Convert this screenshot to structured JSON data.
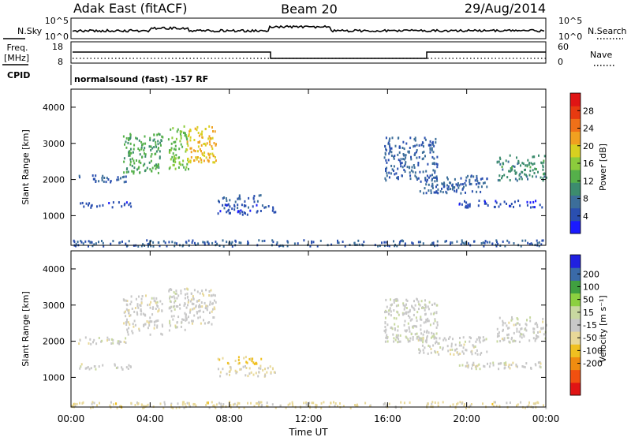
{
  "header": {
    "station": "Adak East (fitACF)",
    "beam": "Beam 20",
    "date": "29/Aug/2014"
  },
  "noise_panel": {
    "left_label": "N.Sky",
    "right_label": "N.Search",
    "ticks": [
      "10^5",
      "10^0"
    ]
  },
  "freq_panel": {
    "left_label_1": "Freq.",
    "left_label_2": "[MHz]",
    "left_ticks": [
      "18",
      "8"
    ],
    "right_label": "Nave",
    "right_ticks": [
      "60",
      "0"
    ]
  },
  "cpid_panel": {
    "label": "CPID",
    "text": "normalsound (fast) -157 RF"
  },
  "colors": {
    "power": [
      "#1a1aff",
      "#2a4fb0",
      "#3c6e9a",
      "#3c8c6e",
      "#55b04a",
      "#8ccc3c",
      "#d8d020",
      "#f0a020",
      "#f07018",
      "#e83a10",
      "#e01414"
    ],
    "velocity": [
      "#e01414",
      "#f05010",
      "#f08c10",
      "#f0c020",
      "#e8d898",
      "#c8c8c8",
      "#c8d8a0",
      "#8cd040",
      "#40a040",
      "#3a6aa8",
      "#2020e0"
    ]
  },
  "chart_data": [
    {
      "type": "heatmap",
      "title": "",
      "xlabel": "Time UT",
      "ylabel": "Slant Range [km]",
      "xlim_hours": [
        0,
        24
      ],
      "ylim_km": [
        180,
        4500
      ],
      "x_ticks": [
        "00:00",
        "04:00",
        "08:00",
        "12:00",
        "16:00",
        "20:00",
        "00:00"
      ],
      "y_ticks": [
        "1000",
        "2000",
        "3000",
        "4000"
      ],
      "colorbar": {
        "label": "Power [dB]",
        "range": [
          0,
          32
        ],
        "ticks": [
          "4",
          "8",
          "12",
          "16",
          "20",
          "24",
          "28"
        ]
      },
      "echo_regions": [
        {
          "t_start": 0.3,
          "t_end": 2.8,
          "r_start": 1950,
          "r_end": 2150,
          "value": 6
        },
        {
          "t_start": 2.6,
          "t_end": 4.6,
          "r_start": 2200,
          "r_end": 3300,
          "value": 12
        },
        {
          "t_start": 4.9,
          "t_end": 5.9,
          "r_start": 2300,
          "r_end": 3500,
          "value": 14
        },
        {
          "t_start": 5.8,
          "t_end": 7.3,
          "r_start": 2500,
          "r_end": 3500,
          "value": 20
        },
        {
          "t_start": 0.4,
          "t_end": 3.0,
          "r_start": 1250,
          "r_end": 1400,
          "value": 4
        },
        {
          "t_start": 7.4,
          "t_end": 9.6,
          "r_start": 1400,
          "r_end": 1600,
          "value": 6
        },
        {
          "t_start": 7.4,
          "t_end": 10.3,
          "r_start": 1050,
          "r_end": 1350,
          "value": 4
        },
        {
          "t_start": 15.8,
          "t_end": 18.5,
          "r_start": 2000,
          "r_end": 3200,
          "value": 6
        },
        {
          "t_start": 17.5,
          "t_end": 21.0,
          "r_start": 1650,
          "r_end": 2150,
          "value": 6
        },
        {
          "t_start": 19.5,
          "t_end": 23.8,
          "r_start": 1250,
          "r_end": 1450,
          "value": 4
        },
        {
          "t_start": 21.5,
          "t_end": 24.0,
          "r_start": 2000,
          "r_end": 2700,
          "value": 10
        },
        {
          "t_start": 0.0,
          "t_end": 24.0,
          "r_start": 180,
          "r_end": 350,
          "value": 6
        }
      ]
    },
    {
      "type": "heatmap",
      "title": "",
      "xlabel": "Time UT",
      "ylabel": "Slant Range [km]",
      "xlim_hours": [
        0,
        24
      ],
      "ylim_km": [
        180,
        4500
      ],
      "x_ticks": [
        "00:00",
        "04:00",
        "08:00",
        "12:00",
        "16:00",
        "20:00",
        "00:00"
      ],
      "y_ticks": [
        "1000",
        "2000",
        "3000",
        "4000"
      ],
      "colorbar": {
        "label": "Velocity [m s⁻¹]",
        "range": [
          -250,
          250
        ],
        "ticks": [
          "200",
          "100",
          "50",
          "15",
          "-15",
          "-50",
          "-100",
          "-200"
        ]
      },
      "echo_regions": [
        {
          "t_start": 0.3,
          "t_end": 2.8,
          "r_start": 1950,
          "r_end": 2150,
          "value": 0
        },
        {
          "t_start": 2.6,
          "t_end": 4.6,
          "r_start": 2200,
          "r_end": 3300,
          "value": -5
        },
        {
          "t_start": 4.9,
          "t_end": 5.9,
          "r_start": 2300,
          "r_end": 3500,
          "value": 5
        },
        {
          "t_start": 5.8,
          "t_end": 7.3,
          "r_start": 2500,
          "r_end": 3500,
          "value": -10
        },
        {
          "t_start": 0.4,
          "t_end": 3.0,
          "r_start": 1250,
          "r_end": 1400,
          "value": 0
        },
        {
          "t_start": 7.4,
          "t_end": 9.6,
          "r_start": 1400,
          "r_end": 1600,
          "value": -70
        },
        {
          "t_start": 7.4,
          "t_end": 10.3,
          "r_start": 1050,
          "r_end": 1350,
          "value": -20
        },
        {
          "t_start": 15.8,
          "t_end": 18.5,
          "r_start": 2000,
          "r_end": 3200,
          "value": 10
        },
        {
          "t_start": 17.5,
          "t_end": 21.0,
          "r_start": 1650,
          "r_end": 2150,
          "value": 0
        },
        {
          "t_start": 19.5,
          "t_end": 23.8,
          "r_start": 1250,
          "r_end": 1450,
          "value": 0
        },
        {
          "t_start": 21.5,
          "t_end": 24.0,
          "r_start": 2000,
          "r_end": 2700,
          "value": 5
        },
        {
          "t_start": 0.0,
          "t_end": 24.0,
          "r_start": 180,
          "r_end": 350,
          "value": -40
        }
      ]
    }
  ]
}
